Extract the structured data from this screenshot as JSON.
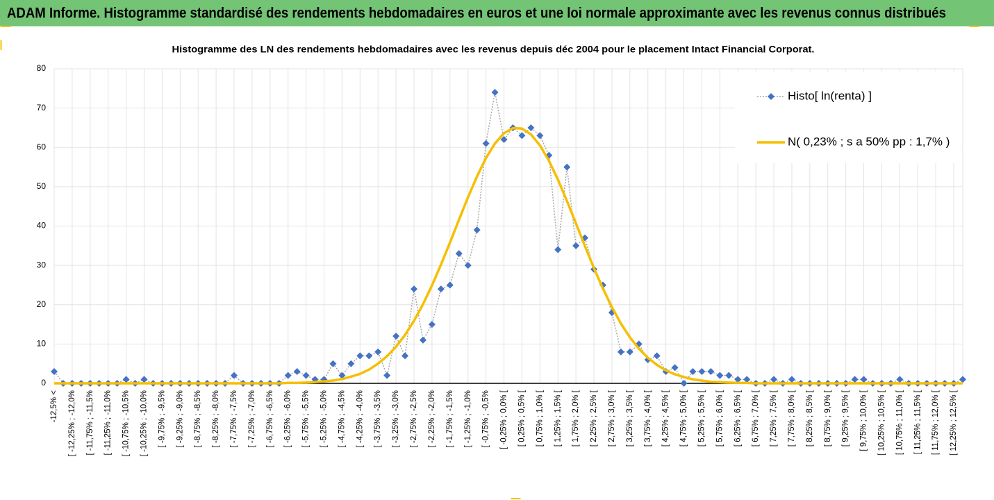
{
  "header": {
    "title": "ADAM Informe. Histogramme standardisé des rendements hebdomadaires en euros et une loi normale approximante avec les revenus connus distribués"
  },
  "chart_data": {
    "type": "line",
    "title": "Histogramme des LN des rendements hebdomadaires avec les revenus depuis déc 2004 pour le placement Intact Financial Corporat.",
    "categories": [
      "-12,5% <",
      null,
      "[ -12,25% ; -12,0%",
      null,
      "[ -11,75% ; -11,5%",
      null,
      "[ -11,25% ; -11,0%",
      null,
      "[ -10,75% ; -10,5%",
      null,
      "[ -10,25% ; -10,0%",
      null,
      "[ -9,75% ; -9,5%",
      null,
      "[ -9,25% ; -9,0%",
      null,
      "[ -8,75% ; -8,5%",
      null,
      "[ -8,25% ; -8,0%",
      null,
      "[ -7,75% ; -7,5%",
      null,
      "[ -7,25% ; -7,0%",
      null,
      "[ -6,75% ; -6,5%",
      null,
      "[ -6,25% ; -6,0%",
      null,
      "[ -5,75% ; -5,5%",
      null,
      "[ -5,25% ; -5,0%",
      null,
      "[ -4,75% ; -4,5%",
      null,
      "[ -4,25% ; -4,0%",
      null,
      "[ -3,75% ; -3,5%",
      null,
      "[ -3,25% ; -3,0%",
      null,
      "[ -2,75% ; -2,5%",
      null,
      "[ -2,25% ; -2,0%",
      null,
      "[ -1,75% ; -1,5%",
      null,
      "[ -1,25% ; -1,0%",
      null,
      "[ -0,75% ; -0,5%",
      null,
      "[ -0,25% ; 0,0% [",
      null,
      "[ 0,25% ; 0,5% [",
      null,
      "[ 0,75% ; 1,0% [",
      null,
      "[ 1,25% ; 1,5% [",
      null,
      "[ 1,75% ; 2,0% [",
      null,
      "[ 2,25% ; 2,5% [",
      null,
      "[ 2,75% ; 3,0% [",
      null,
      "[ 3,25% ; 3,5% [",
      null,
      "[ 3,75% ; 4,0% [",
      null,
      "[ 4,25% ; 4,5% [",
      null,
      "[ 4,75% ; 5,0% [",
      null,
      "[ 5,25% ; 5,5% [",
      null,
      "[ 5,75% ; 6,0% [",
      null,
      "[ 6,25% ; 6,5% [",
      null,
      "[ 6,75% ; 7,0% [",
      null,
      "[ 7,25% ; 7,5% [",
      null,
      "[ 7,75% ; 8,0% [",
      null,
      "[ 8,25% ; 8,5% [",
      null,
      "[ 8,75% ; 9,0% [",
      null,
      "[ 9,25% ; 9,5% [",
      null,
      "[ 9,75% ; 10,0% [",
      null,
      "[ 10,25% ; 10,5% [",
      null,
      "[ 10,75% ; 11,0% [",
      null,
      "[ 11,25% ; 11,5% [",
      null,
      "[ 11,75% ; 12,0% [",
      null,
      "[ 12,25% ; 12,5% [",
      null
    ],
    "series": [
      {
        "name": "Histo[ ln(renta) ]",
        "color": "#4472c4",
        "line_color": "#a6a6a6",
        "values": [
          3,
          0,
          0,
          0,
          0,
          0,
          0,
          0,
          1,
          0,
          1,
          0,
          0,
          0,
          0,
          0,
          0,
          0,
          0,
          0,
          2,
          0,
          0,
          0,
          0,
          0,
          2,
          3,
          2,
          1,
          1,
          5,
          2,
          5,
          7,
          7,
          8,
          2,
          12,
          7,
          24,
          11,
          15,
          24,
          25,
          33,
          30,
          39,
          61,
          74,
          62,
          65,
          63,
          65,
          63,
          58,
          34,
          55,
          35,
          37,
          29,
          25,
          18,
          8,
          8,
          10,
          6,
          7,
          3,
          4,
          0,
          3,
          3,
          3,
          2,
          2,
          1,
          1,
          0,
          0,
          1,
          0,
          1,
          0,
          0,
          0,
          0,
          0,
          0,
          1,
          1,
          0,
          0,
          0,
          1,
          0,
          0,
          0,
          0,
          0,
          0,
          1
        ]
      },
      {
        "name": "N( 0,23% ; s a 50% pp : 1,7% )",
        "color": "#f5bf00",
        "values": [
          0,
          0,
          0,
          0,
          0,
          0,
          0,
          0,
          0,
          0,
          0,
          0,
          0,
          0,
          0,
          0,
          0,
          0,
          0,
          0,
          0,
          0,
          0,
          0,
          0,
          0,
          0.1,
          0.1,
          0.2,
          0.3,
          0.5,
          0.7,
          1.1,
          1.7,
          2.4,
          3.5,
          5.0,
          6.9,
          9.3,
          12.3,
          15.9,
          20.1,
          24.9,
          30.2,
          35.8,
          41.6,
          47.3,
          52.6,
          57.3,
          61.0,
          63.6,
          64.9,
          64.8,
          63.3,
          60.5,
          56.6,
          51.8,
          46.4,
          40.7,
          34.9,
          29.3,
          24.1,
          19.4,
          15.2,
          11.7,
          8.8,
          6.5,
          4.7,
          3.3,
          2.3,
          1.6,
          1.0,
          0.7,
          0.4,
          0.3,
          0.2,
          0.1,
          0.1,
          0,
          0,
          0,
          0,
          0,
          0,
          0,
          0,
          0,
          0,
          0,
          0,
          0,
          0,
          0,
          0,
          0,
          0,
          0,
          0,
          0,
          0,
          0,
          0
        ]
      }
    ],
    "ylim": [
      0,
      80
    ],
    "yticks": [
      0,
      10,
      20,
      30,
      40,
      50,
      60,
      70,
      80
    ],
    "grid": true,
    "legend": "top-right"
  }
}
